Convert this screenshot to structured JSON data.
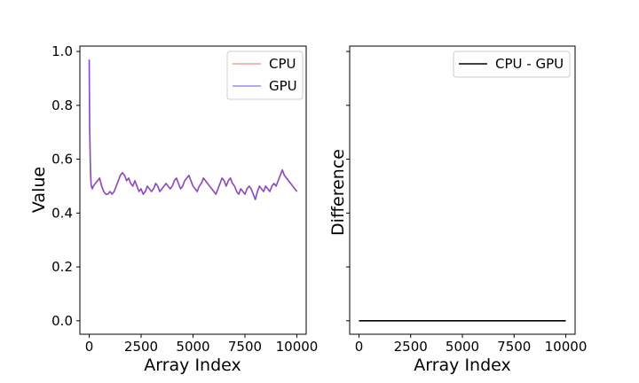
{
  "chart_data": [
    {
      "type": "line",
      "xlabel": "Array Index",
      "ylabel": "Value",
      "xlim": [
        -450,
        10450
      ],
      "ylim": [
        -0.05,
        1.02
      ],
      "xticks": [
        0,
        2500,
        5000,
        7500,
        10000
      ],
      "yticks": [
        0.0,
        0.2,
        0.4,
        0.6,
        0.8,
        1.0
      ],
      "xtick_labels": [
        "0",
        "2500",
        "5000",
        "7500",
        "10000"
      ],
      "ytick_labels": [
        "0.0",
        "0.2",
        "0.4",
        "0.6",
        "0.8",
        "1.0"
      ],
      "grid": false,
      "legend_position": "upper-right",
      "series": [
        {
          "name": "CPU",
          "color": "#f08080",
          "x": [
            0,
            10,
            20,
            40,
            60,
            80,
            100,
            150,
            200,
            300,
            400,
            500,
            600,
            700,
            800,
            900,
            1000,
            1100,
            1200,
            1300,
            1400,
            1500,
            1600,
            1700,
            1800,
            1900,
            2000,
            2100,
            2200,
            2300,
            2400,
            2500,
            2600,
            2700,
            2800,
            2900,
            3000,
            3100,
            3200,
            3300,
            3400,
            3500,
            3600,
            3700,
            3800,
            3900,
            4000,
            4100,
            4200,
            4300,
            4400,
            4500,
            4600,
            4700,
            4800,
            4900,
            5000,
            5100,
            5200,
            5300,
            5400,
            5500,
            5600,
            5700,
            5800,
            5900,
            6000,
            6100,
            6200,
            6300,
            6400,
            6500,
            6600,
            6700,
            6800,
            6900,
            7000,
            7100,
            7200,
            7300,
            7400,
            7500,
            7600,
            7700,
            7800,
            7900,
            8000,
            8100,
            8200,
            8300,
            8400,
            8500,
            8600,
            8700,
            8800,
            8900,
            9000,
            9100,
            9200,
            9300,
            9400,
            9500,
            9600,
            9700,
            9800,
            9900,
            10000
          ],
          "values": [
            0.97,
            0.85,
            0.72,
            0.64,
            0.56,
            0.52,
            0.5,
            0.49,
            0.5,
            0.51,
            0.52,
            0.53,
            0.5,
            0.48,
            0.47,
            0.47,
            0.48,
            0.47,
            0.48,
            0.5,
            0.52,
            0.54,
            0.55,
            0.54,
            0.52,
            0.53,
            0.51,
            0.5,
            0.52,
            0.5,
            0.48,
            0.49,
            0.47,
            0.48,
            0.5,
            0.49,
            0.48,
            0.49,
            0.51,
            0.5,
            0.48,
            0.49,
            0.5,
            0.51,
            0.5,
            0.49,
            0.5,
            0.52,
            0.53,
            0.51,
            0.49,
            0.5,
            0.52,
            0.53,
            0.54,
            0.52,
            0.5,
            0.49,
            0.48,
            0.5,
            0.51,
            0.53,
            0.52,
            0.51,
            0.5,
            0.49,
            0.48,
            0.47,
            0.49,
            0.51,
            0.53,
            0.52,
            0.5,
            0.52,
            0.53,
            0.51,
            0.5,
            0.48,
            0.47,
            0.49,
            0.48,
            0.47,
            0.49,
            0.5,
            0.49,
            0.47,
            0.45,
            0.48,
            0.5,
            0.49,
            0.48,
            0.5,
            0.49,
            0.48,
            0.5,
            0.51,
            0.5,
            0.52,
            0.54,
            0.56,
            0.54,
            0.53,
            0.52,
            0.51,
            0.5,
            0.49,
            0.48
          ]
        },
        {
          "name": "GPU",
          "color": "#7b68ee",
          "x": [
            0,
            10,
            20,
            40,
            60,
            80,
            100,
            150,
            200,
            300,
            400,
            500,
            600,
            700,
            800,
            900,
            1000,
            1100,
            1200,
            1300,
            1400,
            1500,
            1600,
            1700,
            1800,
            1900,
            2000,
            2100,
            2200,
            2300,
            2400,
            2500,
            2600,
            2700,
            2800,
            2900,
            3000,
            3100,
            3200,
            3300,
            3400,
            3500,
            3600,
            3700,
            3800,
            3900,
            4000,
            4100,
            4200,
            4300,
            4400,
            4500,
            4600,
            4700,
            4800,
            4900,
            5000,
            5100,
            5200,
            5300,
            5400,
            5500,
            5600,
            5700,
            5800,
            5900,
            6000,
            6100,
            6200,
            6300,
            6400,
            6500,
            6600,
            6700,
            6800,
            6900,
            7000,
            7100,
            7200,
            7300,
            7400,
            7500,
            7600,
            7700,
            7800,
            7900,
            8000,
            8100,
            8200,
            8300,
            8400,
            8500,
            8600,
            8700,
            8800,
            8900,
            9000,
            9100,
            9200,
            9300,
            9400,
            9500,
            9600,
            9700,
            9800,
            9900,
            10000
          ],
          "values": [
            0.97,
            0.85,
            0.72,
            0.64,
            0.56,
            0.52,
            0.5,
            0.49,
            0.5,
            0.51,
            0.52,
            0.53,
            0.5,
            0.48,
            0.47,
            0.47,
            0.48,
            0.47,
            0.48,
            0.5,
            0.52,
            0.54,
            0.55,
            0.54,
            0.52,
            0.53,
            0.51,
            0.5,
            0.52,
            0.5,
            0.48,
            0.49,
            0.47,
            0.48,
            0.5,
            0.49,
            0.48,
            0.49,
            0.51,
            0.5,
            0.48,
            0.49,
            0.5,
            0.51,
            0.5,
            0.49,
            0.5,
            0.52,
            0.53,
            0.51,
            0.49,
            0.5,
            0.52,
            0.53,
            0.54,
            0.52,
            0.5,
            0.49,
            0.48,
            0.5,
            0.51,
            0.53,
            0.52,
            0.51,
            0.5,
            0.49,
            0.48,
            0.47,
            0.49,
            0.51,
            0.53,
            0.52,
            0.5,
            0.52,
            0.53,
            0.51,
            0.5,
            0.48,
            0.47,
            0.49,
            0.48,
            0.47,
            0.49,
            0.5,
            0.49,
            0.47,
            0.45,
            0.48,
            0.5,
            0.49,
            0.48,
            0.5,
            0.49,
            0.48,
            0.5,
            0.51,
            0.5,
            0.52,
            0.54,
            0.56,
            0.54,
            0.53,
            0.52,
            0.51,
            0.5,
            0.49,
            0.48
          ]
        }
      ],
      "overlap_color": "#8a4cc0"
    },
    {
      "type": "line",
      "xlabel": "Array Index",
      "ylabel": "Difference",
      "xlim": [
        -450,
        10450
      ],
      "ylim": [
        -0.05,
        1.02
      ],
      "xticks": [
        0,
        2500,
        5000,
        7500,
        10000
      ],
      "xtick_labels": [
        "0",
        "2500",
        "5000",
        "7500",
        "10000"
      ],
      "yticks": [
        0.0,
        0.2,
        0.4,
        0.6,
        0.8,
        1.0
      ],
      "ytick_labels_visible": false,
      "grid": false,
      "legend_position": "upper-right",
      "series": [
        {
          "name": "CPU - GPU",
          "color": "#000000",
          "x": [
            0,
            10000
          ],
          "values": [
            0.0,
            0.0
          ]
        }
      ]
    }
  ]
}
